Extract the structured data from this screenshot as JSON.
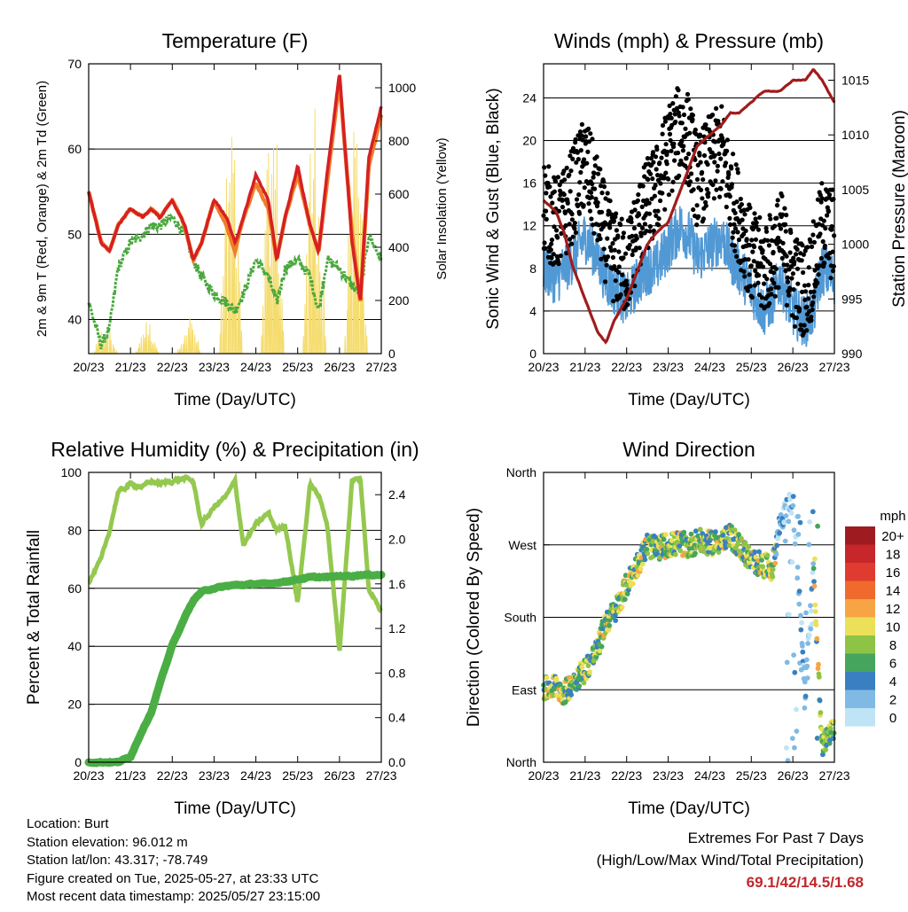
{
  "meta": {
    "location": "Location: Burt",
    "elevation": "Station elevation: 96.012 m",
    "latlon": "Station lat/lon: 43.317; -78.749",
    "created": "Figure created on Tue, 2025-05-27, at 23:33 UTC",
    "recent": "Most recent data timestamp: 2025/05/27 23:15:00"
  },
  "extremes": {
    "title": "Extremes For Past 7 Days",
    "subtitle": "(High/Low/Max Wind/Total Precipitation)",
    "values": "69.1/42/14.5/1.68"
  },
  "colors": {
    "temp2m": "#d62022",
    "temp9m": "#f07d2a",
    "dewpoint": "#4aa83e",
    "solar": "#f5dc6e",
    "wind": "#5199d5",
    "gust": "#000000",
    "pressure": "#a01c1c",
    "rh": "#94c84f",
    "precip": "#4aae45"
  },
  "xticks": [
    "20/23",
    "21/23",
    "22/23",
    "23/23",
    "24/23",
    "25/23",
    "26/23",
    "27/23"
  ],
  "xlabel": "Time (Day/UTC)",
  "chart_data": [
    {
      "type": "line",
      "title": "Temperature (F)",
      "xlabel": "Time (Day/UTC)",
      "ylabel": "2m & 9m T (Red, Orange) & 2m Td (Green)",
      "ylabel_right": "Solar Insolation (Yellow)",
      "ylim": [
        36,
        70
      ],
      "yticks": [
        40,
        50,
        60,
        70
      ],
      "ylim_right": [
        0,
        1090
      ],
      "yticks_right": [
        0,
        200,
        400,
        600,
        800,
        1000
      ],
      "x": [
        0,
        0.3,
        0.5,
        0.7,
        1,
        1.3,
        1.5,
        1.7,
        2,
        2.3,
        2.5,
        2.7,
        3,
        3.3,
        3.5,
        3.7,
        4,
        4.3,
        4.5,
        4.7,
        5,
        5.3,
        5.5,
        5.7,
        6,
        6.3,
        6.5,
        6.7,
        7
      ],
      "series": [
        {
          "values": [
            55,
            49,
            48,
            51,
            53,
            52,
            53,
            52,
            54,
            51,
            47,
            49,
            54,
            52,
            49,
            52,
            57,
            54,
            47,
            52,
            58,
            51,
            48,
            57,
            69,
            49,
            42,
            59,
            65
          ]
        },
        {
          "values": [
            55,
            49,
            48,
            51,
            53,
            52,
            53,
            52,
            54,
            51,
            47,
            49,
            54,
            51,
            48,
            52,
            56,
            53,
            47,
            52,
            57,
            51,
            48,
            56,
            68,
            50,
            42,
            58,
            64
          ]
        },
        {
          "values": [
            42,
            37,
            39,
            46,
            49,
            50,
            51,
            51,
            52,
            50,
            47,
            45,
            43,
            42,
            41,
            43,
            47,
            45,
            42,
            46,
            47,
            45,
            41,
            47,
            46,
            44,
            43,
            50,
            47
          ]
        },
        {
          "peaks": [
            [
              0.4,
              110
            ],
            [
              1.4,
              130
            ],
            [
              2.4,
              150
            ],
            [
              3.4,
              900
            ],
            [
              4.4,
              980
            ],
            [
              5.4,
              1000
            ],
            [
              6.4,
              900
            ]
          ]
        }
      ]
    },
    {
      "type": "scatter",
      "title": "Winds (mph) & Pressure (mb)",
      "xlabel": "Time (Day/UTC)",
      "ylabel": "Sonic Wind & Gust (Blue, Black)",
      "ylabel_right": "Station Pressure (Maroon)",
      "ylim": [
        0,
        27.2
      ],
      "yticks": [
        0,
        4,
        8,
        12,
        16,
        20,
        24
      ],
      "ylim_right": [
        990,
        1016.5
      ],
      "yticks_right": [
        990,
        995,
        1000,
        1005,
        1010,
        1015
      ],
      "x": [
        0,
        0.3,
        0.5,
        0.7,
        1,
        1.3,
        1.5,
        1.7,
        2,
        2.3,
        2.5,
        2.7,
        3,
        3.3,
        3.5,
        3.7,
        4,
        4.3,
        4.5,
        4.7,
        5,
        5.3,
        5.5,
        5.7,
        6,
        6.3,
        6.5,
        6.7,
        7
      ],
      "series": [
        {
          "values": [
            8,
            7,
            8,
            9,
            11,
            9,
            7,
            6,
            5,
            7,
            8,
            8,
            10,
            12,
            11,
            9,
            10,
            11,
            9,
            8,
            6,
            4,
            5,
            7,
            4,
            3,
            4,
            8,
            7
          ]
        },
        {
          "values": [
            14,
            12,
            13,
            15,
            18,
            14,
            11,
            9,
            8,
            12,
            14,
            15,
            19,
            21,
            20,
            16,
            18,
            19,
            15,
            13,
            9,
            8,
            9,
            11,
            7,
            6,
            8,
            12,
            11
          ]
        },
        {
          "values": [
            1004,
            1003,
            1001,
            998,
            995,
            992,
            991,
            993,
            995,
            998,
            1000,
            1001,
            1002,
            1005,
            1007,
            1009,
            1010,
            1011,
            1012,
            1012,
            1013,
            1014,
            1014,
            1014,
            1015,
            1015,
            1016,
            1015,
            1013
          ]
        }
      ]
    },
    {
      "type": "line",
      "title": "Relative Humidity (%) & Precipitation (in)",
      "xlabel": "Time (Day/UTC)",
      "ylabel": "Percent & Total Rainfall",
      "ylim": [
        0,
        100
      ],
      "yticks": [
        0,
        20,
        40,
        60,
        80,
        100
      ],
      "ylim_right": [
        0,
        2.6
      ],
      "yticks_right": [
        "0.0",
        "0.4",
        "0.8",
        "1.2",
        "1.6",
        "2.0",
        "2.4"
      ],
      "x": [
        0,
        0.3,
        0.5,
        0.7,
        1,
        1.3,
        1.5,
        1.7,
        2,
        2.3,
        2.5,
        2.7,
        3,
        3.3,
        3.5,
        3.7,
        4,
        4.3,
        4.5,
        4.7,
        5,
        5.3,
        5.5,
        5.7,
        6,
        6.3,
        6.5,
        6.7,
        7
      ],
      "series": [
        {
          "values": [
            62,
            70,
            80,
            93,
            96,
            95,
            97,
            96,
            97,
            98,
            97,
            82,
            88,
            92,
            97,
            75,
            82,
            86,
            80,
            82,
            55,
            96,
            92,
            83,
            38,
            97,
            98,
            60,
            52
          ]
        },
        {
          "values": [
            0,
            0,
            0,
            0,
            0.05,
            0.3,
            0.45,
            0.7,
            1.05,
            1.3,
            1.45,
            1.53,
            1.56,
            1.58,
            1.59,
            1.59,
            1.6,
            1.6,
            1.61,
            1.62,
            1.64,
            1.66,
            1.66,
            1.66,
            1.67,
            1.67,
            1.68,
            1.68,
            1.68
          ]
        }
      ]
    },
    {
      "type": "scatter",
      "title": "Wind Direction",
      "xlabel": "Time (Day/UTC)",
      "ylabel": "Direction (Colored By Speed)",
      "yticks": [
        "North",
        "East",
        "South",
        "West",
        "North"
      ],
      "ylim": [
        0,
        360
      ],
      "legend_title": "mph",
      "legend_labels": [
        "20+",
        "18",
        "16",
        "14",
        "12",
        "10",
        "8",
        "6",
        "4",
        "2",
        "0"
      ],
      "legend_colors": [
        "#9e1c20",
        "#c7262a",
        "#e03b30",
        "#f06a2e",
        "#f7a444",
        "#ebe058",
        "#8ec446",
        "#45a55c",
        "#3a80c0",
        "#80bae4",
        "#bfe4f6"
      ],
      "x": [
        0,
        0.3,
        0.5,
        0.7,
        1,
        1.3,
        1.5,
        1.7,
        2,
        2.3,
        2.5,
        2.7,
        3,
        3.3,
        3.5,
        3.7,
        4,
        4.3,
        4.5,
        4.7,
        5,
        5.3,
        5.5,
        5.7,
        6,
        6.3,
        6.5,
        6.7,
        7
      ],
      "series": [
        {
          "values": [
            90,
            95,
            85,
            100,
            115,
            140,
            175,
            185,
            220,
            250,
            270,
            265,
            270,
            272,
            268,
            275,
            272,
            275,
            280,
            270,
            250,
            245,
            240,
            300,
            325,
            90,
            240,
            20,
            40
          ]
        }
      ]
    }
  ]
}
